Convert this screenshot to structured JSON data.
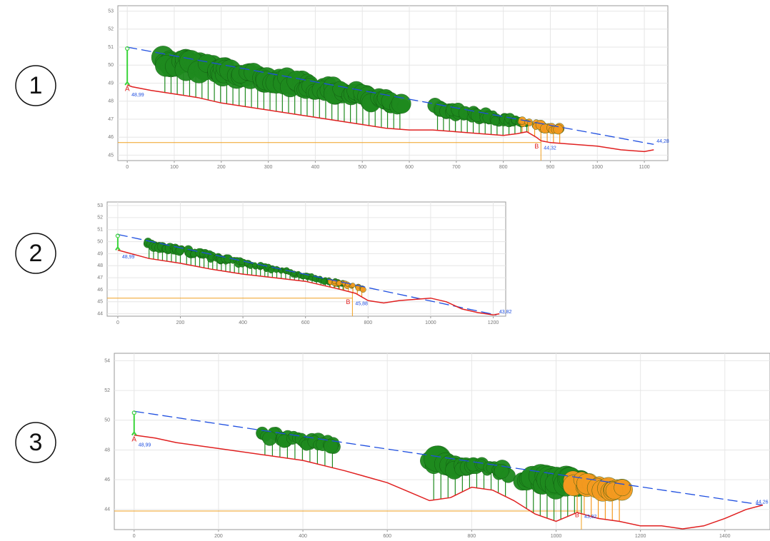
{
  "chart_data": [
    {
      "type": "line",
      "label": "1",
      "x": [
        0,
        10,
        50,
        100,
        150,
        200,
        300,
        400,
        500,
        550,
        600,
        650,
        700,
        750,
        800,
        830,
        850,
        870,
        880,
        900,
        950,
        1000,
        1050,
        1100,
        1120
      ],
      "series": [
        {
          "color": "#e02020",
          "values": [
            48.9,
            48.8,
            48.6,
            48.4,
            48.2,
            47.9,
            47.5,
            47.1,
            46.7,
            46.5,
            46.4,
            46.4,
            46.3,
            46.2,
            46.1,
            46.2,
            46.3,
            46.0,
            45.8,
            45.7,
            45.6,
            45.5,
            45.3,
            45.2,
            45.3
          ]
        }
      ],
      "sight_line": {
        "color": "#1f4fe0",
        "x": [
          0,
          1120
        ],
        "values": [
          51,
          45.6
        ]
      },
      "observer_label": "A",
      "observer_value": "48,99",
      "target": {
        "x": 880,
        "y": 45.7,
        "label": "B",
        "value_label": "44,32",
        "color": "#f0a020"
      },
      "end_value_label": "44,28",
      "tree_groups": [
        {
          "x": [
            80,
            580
          ],
          "color": "#1e8a1e"
        },
        {
          "x": [
            660,
            850
          ],
          "color": "#1e8a1e"
        },
        {
          "x": [
            840,
            920
          ],
          "color": "#f49a20"
        }
      ],
      "xlim": [
        -20,
        1150
      ],
      "ylim": [
        44.7,
        53.3
      ],
      "xticks": [
        0,
        100,
        200,
        300,
        400,
        500,
        600,
        700,
        800,
        900,
        1000,
        1100
      ],
      "yticks": [
        45,
        46,
        47,
        48,
        49,
        50,
        51,
        52,
        53
      ],
      "grid": true
    },
    {
      "type": "line",
      "label": "2",
      "x": [
        0,
        100,
        200,
        300,
        400,
        500,
        600,
        700,
        760,
        800,
        850,
        900,
        1000,
        1050,
        1100,
        1150,
        1200,
        1220
      ],
      "series": [
        {
          "color": "#e02020",
          "values": [
            49.3,
            48.6,
            48.2,
            47.7,
            47.3,
            47.0,
            46.7,
            46.1,
            45.7,
            45.1,
            44.9,
            45.1,
            45.3,
            45.0,
            44.4,
            44.1,
            43.9,
            44.0
          ]
        }
      ],
      "sight_line": {
        "color": "#1f4fe0",
        "x": [
          0,
          1210
        ],
        "values": [
          50.6,
          43.9
        ]
      },
      "observer_value": "48,99",
      "target": {
        "x": 750,
        "y": 45.3,
        "label": "B",
        "value_label": "45,88",
        "color": "#f0a020"
      },
      "end_value_label": "43,82",
      "tree_groups": [
        {
          "x": [
            100,
            200
          ],
          "color": "#1e8a1e"
        },
        {
          "x": [
            220,
            470
          ],
          "color": "#1e8a1e"
        },
        {
          "x": [
            480,
            720
          ],
          "color": "#1e8a1e"
        },
        {
          "x": [
            680,
            780
          ],
          "color": "#f49a20"
        }
      ],
      "xlim": [
        -34,
        1240
      ],
      "ylim": [
        43.8,
        53.3
      ],
      "xticks": [
        0,
        200,
        400,
        600,
        800,
        1000,
        1200
      ],
      "yticks": [
        44,
        45,
        46,
        47,
        48,
        49,
        50,
        51,
        52,
        53
      ],
      "grid": true
    },
    {
      "type": "line",
      "label": "3",
      "x": [
        0,
        50,
        100,
        200,
        300,
        400,
        500,
        550,
        600,
        650,
        700,
        750,
        800,
        850,
        900,
        950,
        1000,
        1050,
        1100,
        1150,
        1200,
        1250,
        1300,
        1350,
        1400,
        1450,
        1490
      ],
      "series": [
        {
          "color": "#e02020",
          "values": [
            49,
            48.8,
            48.5,
            48.1,
            47.7,
            47.3,
            46.6,
            46.2,
            45.8,
            45.2,
            44.6,
            44.8,
            45.5,
            45.3,
            44.6,
            43.7,
            43.2,
            43.8,
            43.4,
            43.2,
            42.9,
            42.9,
            42.7,
            42.9,
            43.4,
            44.0,
            44.3
          ]
        }
      ],
      "sight_line": {
        "color": "#1f4fe0",
        "x": [
          0,
          1490
        ],
        "values": [
          50.6,
          44.3
        ]
      },
      "observer_label": "A",
      "observer_value": "48,99",
      "target": {
        "x": 1060,
        "y": 43.9,
        "label": "B",
        "value_label": "43,82",
        "color": "#f0a020"
      },
      "end_value_label": "44,26",
      "tree_groups": [
        {
          "x": [
            310,
            470
          ],
          "color": "#1e8a1e"
        },
        {
          "x": [
            710,
            880
          ],
          "color": "#1e8a1e"
        },
        {
          "x": [
            930,
            1060
          ],
          "color": "#1e8a1e"
        },
        {
          "x": [
            1050,
            1150
          ],
          "color": "#f49a20"
        }
      ],
      "xlim": [
        -47,
        1507
      ],
      "ylim": [
        42.65,
        54.5
      ],
      "xticks": [
        0,
        200,
        400,
        600,
        800,
        1000,
        1200,
        1400
      ],
      "yticks": [
        44,
        46,
        48,
        50,
        52,
        54
      ],
      "grid": true
    }
  ]
}
